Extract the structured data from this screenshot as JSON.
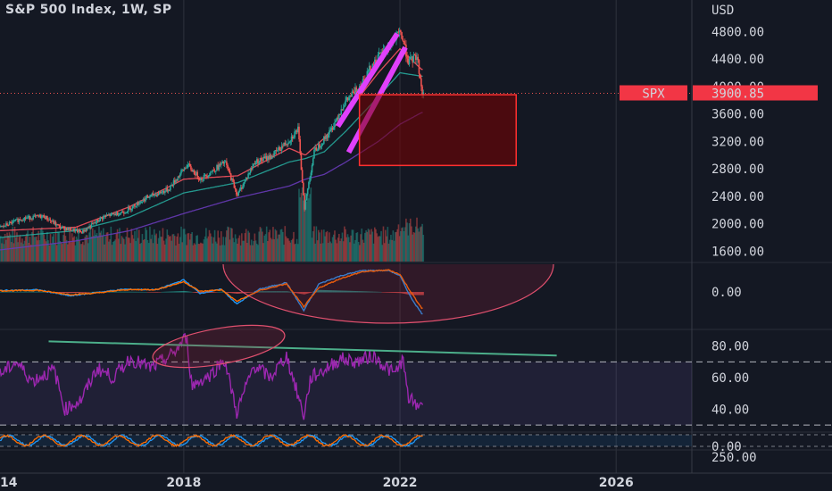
{
  "header": {
    "title": "S&P 500 Index, 1W, SP"
  },
  "colors": {
    "background": "#141823",
    "up": "#26a69a",
    "down": "#ef5350",
    "ma_fast": "#f7525f",
    "ma_mid": "#26a69a",
    "ma_slow": "#673ab7",
    "channel": "#e040fb",
    "box": "#ff3030",
    "macd": "#2196f3",
    "signal": "#ff6d00",
    "rsi": "#9c27b0",
    "trend": "#4caf8a",
    "badge": "#f23645"
  },
  "chart_data": [
    {
      "type": "line",
      "name": "price",
      "title": "S&P 500 Index, 1W, SP",
      "y_axis_unit": "USD",
      "y_ticks": [
        "4800.00",
        "4400.00",
        "4000.00",
        "3600.00",
        "3200.00",
        "2800.00",
        "2400.00",
        "2000.00",
        "1600.00"
      ],
      "x_ticks": [
        "14",
        "2018",
        "2022",
        "2026"
      ],
      "ylim": [
        1450,
        5000
      ],
      "xlim": [
        2014.6,
        2027.4
      ],
      "last_value": {
        "label": "SPX",
        "value": "3900.85"
      },
      "series": [
        {
          "x": [
            2014.6,
            2015.0,
            2015.4,
            2015.7,
            2016.1,
            2016.5,
            2016.9,
            2017.3,
            2017.7,
            2018.05,
            2018.3,
            2018.75,
            2018.98,
            2019.3,
            2019.6,
            2019.95,
            2020.1,
            2020.22,
            2020.4,
            2020.7,
            2020.95,
            2021.2,
            2021.5,
            2021.8,
            2022.0,
            2022.15,
            2022.3,
            2022.4
          ],
          "values": [
            1950,
            2080,
            2110,
            1950,
            1880,
            2100,
            2180,
            2380,
            2500,
            2860,
            2650,
            2900,
            2420,
            2900,
            2980,
            3230,
            3380,
            2240,
            3050,
            3350,
            3750,
            3970,
            4350,
            4600,
            4790,
            4350,
            4450,
            3900
          ]
        }
      ],
      "moving_averages": [
        {
          "period": "fast",
          "x": [
            2014.6,
            2016.0,
            2017.0,
            2018.0,
            2019.0,
            2019.95,
            2020.25,
            2020.6,
            2021.0,
            2021.6,
            2022.0,
            2022.4
          ],
          "values": [
            1900,
            1950,
            2250,
            2650,
            2700,
            3100,
            3000,
            3250,
            3600,
            4200,
            4550,
            4250
          ]
        },
        {
          "period": "mid",
          "x": [
            2014.6,
            2016.0,
            2017.0,
            2018.0,
            2019.0,
            2019.95,
            2020.25,
            2020.6,
            2021.0,
            2021.6,
            2022.0,
            2022.4
          ],
          "values": [
            1800,
            1900,
            2100,
            2450,
            2600,
            2900,
            2950,
            3050,
            3350,
            3850,
            4200,
            4150
          ]
        },
        {
          "period": "slow",
          "x": [
            2014.6,
            2016.0,
            2017.0,
            2018.0,
            2019.0,
            2019.95,
            2020.25,
            2020.6,
            2021.0,
            2021.6,
            2022.0,
            2022.4
          ],
          "values": [
            1620,
            1750,
            1900,
            2150,
            2380,
            2550,
            2650,
            2720,
            2900,
            3200,
            3450,
            3620
          ]
        }
      ],
      "drawings": {
        "channel_upper": {
          "x": [
            2020.85,
            2021.95
          ],
          "values": [
            3420,
            4770
          ]
        },
        "channel_lower": {
          "x": [
            2021.05,
            2022.1
          ],
          "values": [
            3040,
            4570
          ]
        },
        "target_box": {
          "x": [
            2021.25,
            2024.15
          ],
          "values": [
            2850,
            3880
          ]
        }
      }
    },
    {
      "type": "line",
      "name": "macd",
      "y_ticks": [
        "0.00"
      ],
      "x": [
        2014.6,
        2015.3,
        2015.9,
        2016.4,
        2016.9,
        2017.5,
        2018.0,
        2018.3,
        2018.7,
        2018.98,
        2019.4,
        2019.9,
        2020.22,
        2020.5,
        2020.9,
        2021.3,
        2021.8,
        2022.0,
        2022.2,
        2022.4
      ],
      "series": [
        {
          "name": "macd",
          "values": [
            5,
            8,
            -15,
            -2,
            10,
            8,
            45,
            -5,
            10,
            -45,
            10,
            35,
            -70,
            30,
            60,
            80,
            80,
            60,
            -20,
            -80
          ]
        },
        {
          "name": "signal",
          "values": [
            4,
            6,
            -10,
            -4,
            8,
            9,
            38,
            2,
            8,
            -35,
            5,
            30,
            -55,
            15,
            50,
            75,
            82,
            65,
            0,
            -60
          ]
        }
      ]
    },
    {
      "type": "line",
      "name": "rsi",
      "y_ticks": [
        "80.00",
        "60.00",
        "40.00"
      ],
      "ylim": [
        25,
        90
      ],
      "x": [
        2014.6,
        2014.9,
        2015.2,
        2015.6,
        2015.8,
        2016.1,
        2016.4,
        2016.7,
        2017.0,
        2017.4,
        2017.8,
        2018.05,
        2018.15,
        2018.5,
        2018.75,
        2018.98,
        2019.3,
        2019.6,
        2019.9,
        2020.22,
        2020.35,
        2020.6,
        2020.9,
        2021.2,
        2021.5,
        2021.9,
        2022.05,
        2022.15,
        2022.3,
        2022.42
      ],
      "series": [
        {
          "name": "rsi",
          "values": [
            62,
            70,
            58,
            65,
            40,
            46,
            66,
            60,
            72,
            66,
            75,
            86,
            55,
            62,
            72,
            38,
            68,
            60,
            74,
            36,
            60,
            65,
            72,
            70,
            74,
            62,
            72,
            48,
            42,
            45
          ]
        }
      ],
      "drawings": {
        "trend_line": {
          "x": [
            2015.5,
            2024.9
          ],
          "values": [
            83,
            74
          ]
        }
      }
    },
    {
      "type": "line",
      "name": "stoch",
      "y_ticks": [
        "0.00",
        "250.00"
      ]
    }
  ]
}
